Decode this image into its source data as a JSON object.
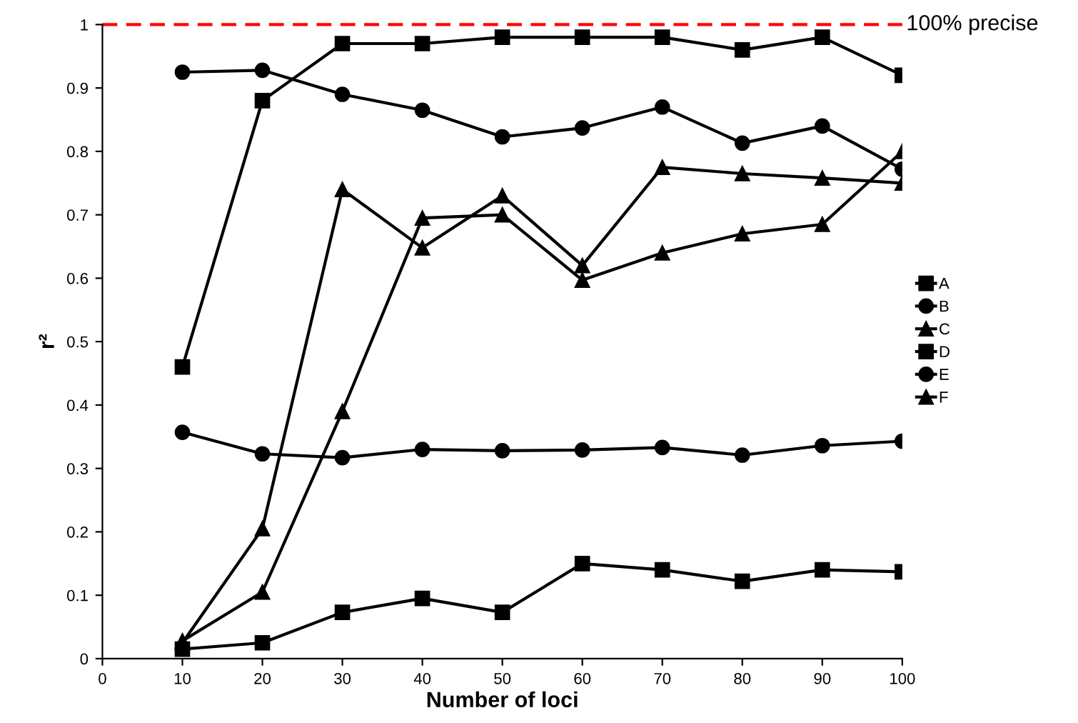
{
  "chart_data": {
    "type": "line",
    "xlabel": "Number of loci",
    "ylabel": "r²",
    "x": [
      10,
      20,
      30,
      40,
      50,
      60,
      70,
      80,
      90,
      100
    ],
    "xlim": [
      0,
      100
    ],
    "xticks": [
      0,
      10,
      20,
      30,
      40,
      50,
      60,
      70,
      80,
      90,
      100
    ],
    "ylim": [
      0,
      1
    ],
    "yticks": [
      0,
      0.1,
      0.2,
      0.3,
      0.4,
      0.5,
      0.6,
      0.7,
      0.8,
      0.9,
      1
    ],
    "grid": false,
    "legend": "right",
    "line_style": "solid",
    "ref_lines": [
      {
        "axis": "y",
        "value": 1,
        "label": "100% precise",
        "color": "#ff0000",
        "line_style": "dashed"
      }
    ],
    "series": [
      {
        "name": "A",
        "color": "#000000",
        "marker": "square",
        "values": [
          0.46,
          0.88,
          0.97,
          0.97,
          0.98,
          0.98,
          0.98,
          0.96,
          0.98,
          0.92
        ]
      },
      {
        "name": "B",
        "color": "#000000",
        "marker": "circle",
        "values": [
          0.925,
          0.928,
          0.89,
          0.865,
          0.823,
          0.837,
          0.87,
          0.813,
          0.84,
          0.772
        ]
      },
      {
        "name": "C",
        "color": "#000000",
        "marker": "triangle",
        "values": [
          0.025,
          0.205,
          0.74,
          0.648,
          0.73,
          0.62,
          0.775,
          0.765,
          0.758,
          0.75
        ]
      },
      {
        "name": "D",
        "color": "#000000",
        "marker": "square",
        "values": [
          0.015,
          0.025,
          0.073,
          0.095,
          0.073,
          0.15,
          0.14,
          0.122,
          0.14,
          0.137
        ]
      },
      {
        "name": "E",
        "color": "#000000",
        "marker": "circle",
        "values": [
          0.357,
          0.323,
          0.317,
          0.33,
          0.328,
          0.329,
          0.333,
          0.321,
          0.336,
          0.343
        ]
      },
      {
        "name": "F",
        "color": "#000000",
        "marker": "triangle",
        "values": [
          0.028,
          0.105,
          0.39,
          0.695,
          0.7,
          0.597,
          0.64,
          0.67,
          0.685,
          0.8
        ]
      }
    ]
  }
}
